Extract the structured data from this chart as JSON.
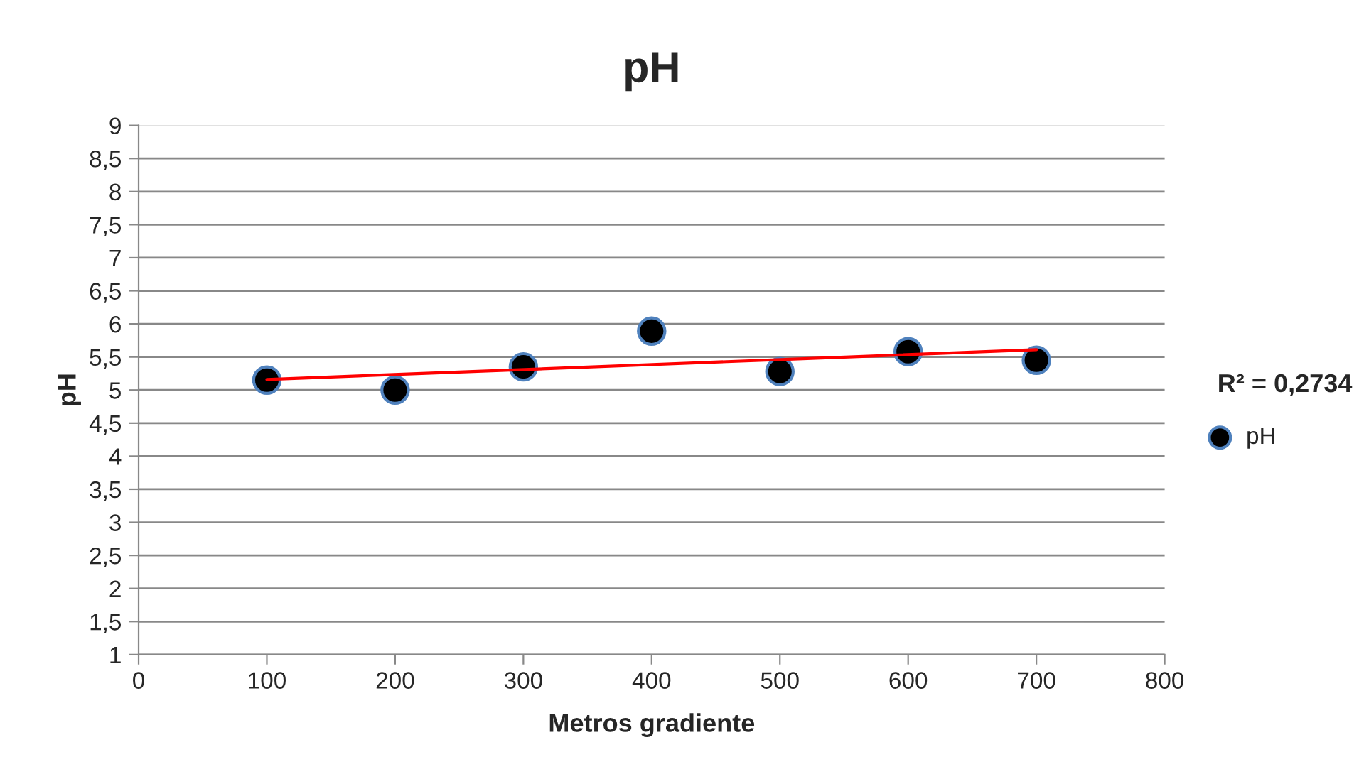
{
  "chart_data": {
    "type": "scatter",
    "title": "pH",
    "xlabel": "Metros gradiente",
    "ylabel": "pH",
    "series": [
      {
        "name": "pH",
        "marker": "circle",
        "color": "#000000",
        "x": [
          100,
          200,
          300,
          400,
          500,
          600,
          700
        ],
        "values": [
          5.15,
          5.0,
          5.35,
          5.89,
          5.28,
          5.58,
          5.45
        ]
      },
      {
        "type": "line",
        "marker": "none",
        "color": "#ff0000",
        "x": [
          100,
          700
        ],
        "values": [
          5.16,
          5.61
        ]
      }
    ],
    "annotations": [
      "R² = 0,2734"
    ],
    "xlim": [
      0,
      800
    ],
    "xticks": [
      0,
      100,
      200,
      300,
      400,
      500,
      600,
      700,
      800
    ],
    "ylim": [
      1,
      9
    ],
    "yticks": [
      1,
      {
        "value": 1.5,
        "label": "1,5"
      },
      2,
      {
        "value": 2.5,
        "label": "2,5"
      },
      3,
      {
        "value": 3.5,
        "label": "3,5"
      },
      4,
      {
        "value": 4.5,
        "label": "4,5"
      },
      5,
      {
        "value": 5.5,
        "label": "5,5"
      },
      6,
      {
        "value": 6.5,
        "label": "6,5"
      },
      7,
      {
        "value": 7.5,
        "label": "7,5"
      },
      8,
      {
        "value": 8.5,
        "label": "8,5"
      },
      9
    ],
    "grid": "y",
    "legend": "right"
  }
}
